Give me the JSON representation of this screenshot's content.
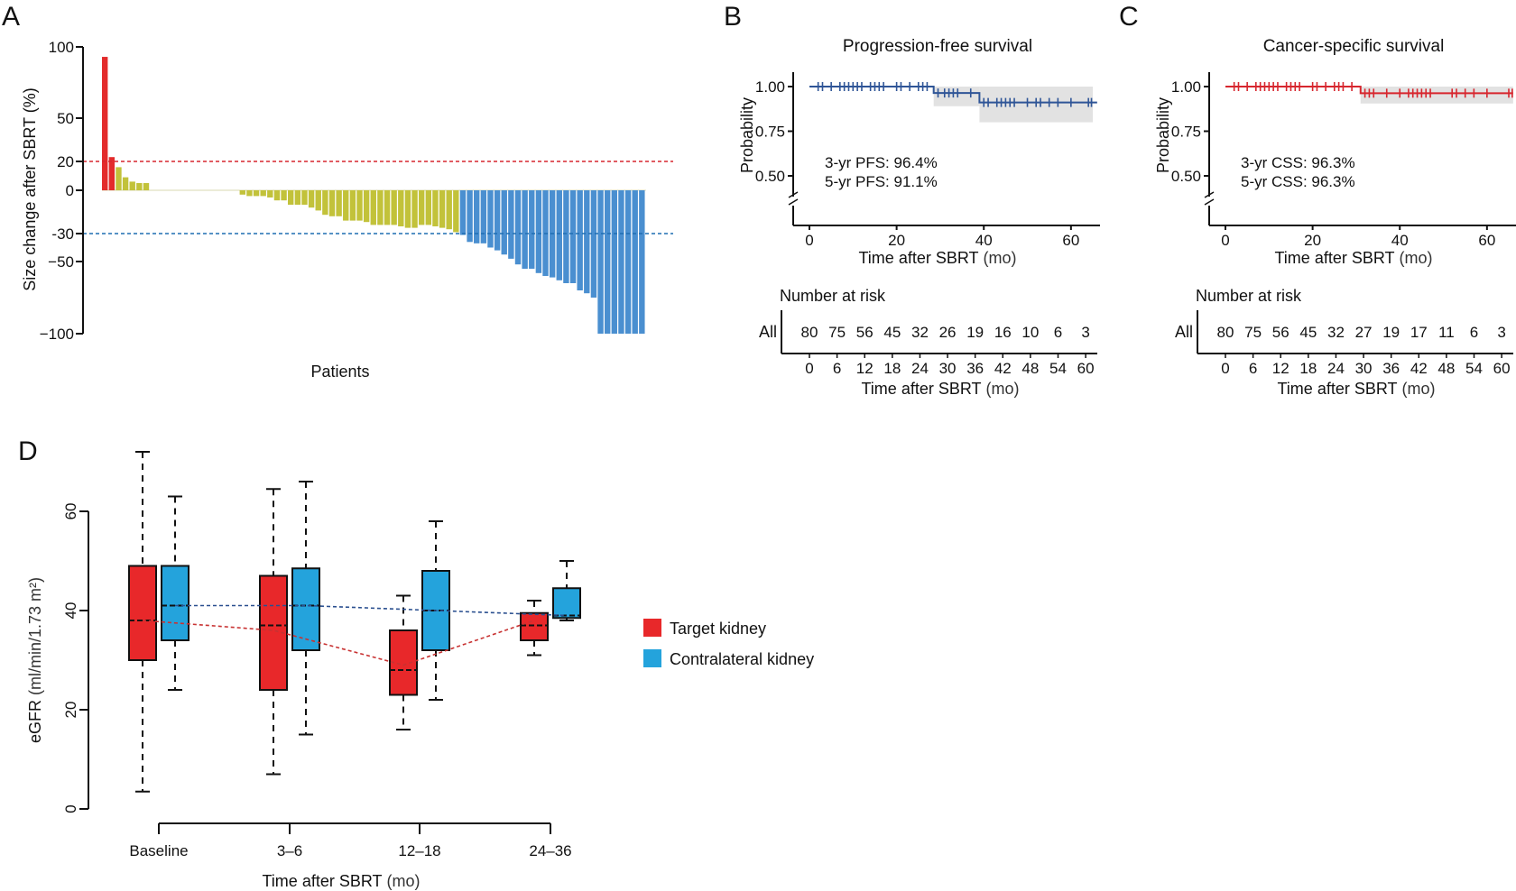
{
  "figure": {
    "panels": [
      "A",
      "B",
      "C",
      "D"
    ]
  },
  "chart_data": [
    {
      "panel": "A",
      "type": "bar",
      "title": "",
      "xlabel": "Patients",
      "ylabel": "Size change after SBRT (%)",
      "yticks": [
        "100",
        "50",
        "20",
        "0",
        "-30",
        "−50",
        "−100"
      ],
      "ylim": [
        -100,
        100
      ],
      "reference_lines": [
        {
          "value": 20,
          "color": "#d7262e",
          "style": "dashed"
        },
        {
          "value": -30,
          "color": "#1f6fb2",
          "style": "dashed"
        }
      ],
      "colors": {
        "progression": "#e32b2b",
        "stable": "#c2c23a",
        "response": "#4a8fd0"
      },
      "values": [
        93,
        23,
        16,
        9,
        6,
        5,
        5,
        0,
        0,
        0,
        0,
        0,
        0,
        0,
        0,
        0,
        0,
        0,
        0,
        0,
        -3,
        -4,
        -4,
        -4,
        -5,
        -7,
        -7,
        -10,
        -10,
        -10,
        -12,
        -14,
        -17,
        -18,
        -18,
        -21,
        -21,
        -21,
        -22,
        -24,
        -24,
        -24,
        -24,
        -25,
        -26,
        -26,
        -24,
        -24,
        -25,
        -26,
        -27,
        -29,
        -31,
        -36,
        -37,
        -37,
        -40,
        -42,
        -45,
        -48,
        -52,
        -55,
        -55,
        -58,
        -60,
        -61,
        -63,
        -65,
        -65,
        -70,
        -72,
        -75,
        -100,
        -100,
        -100,
        -100,
        -100,
        -100,
        -100
      ],
      "categories": [
        "progression",
        "progression",
        "stable",
        "stable",
        "stable",
        "stable",
        "stable",
        "stable",
        "stable",
        "stable",
        "stable",
        "stable",
        "stable",
        "stable",
        "stable",
        "stable",
        "stable",
        "stable",
        "stable",
        "stable",
        "stable",
        "stable",
        "stable",
        "stable",
        "stable",
        "stable",
        "stable",
        "stable",
        "stable",
        "stable",
        "stable",
        "stable",
        "stable",
        "stable",
        "stable",
        "stable",
        "stable",
        "stable",
        "stable",
        "stable",
        "stable",
        "stable",
        "stable",
        "stable",
        "stable",
        "stable",
        "stable",
        "stable",
        "stable",
        "stable",
        "stable",
        "stable",
        "response",
        "response",
        "response",
        "response",
        "response",
        "response",
        "response",
        "response",
        "response",
        "response",
        "response",
        "response",
        "response",
        "response",
        "response",
        "response",
        "response",
        "response",
        "response",
        "response",
        "response",
        "response",
        "response",
        "response",
        "response",
        "response",
        "response"
      ]
    },
    {
      "panel": "B",
      "type": "line",
      "title": "Progression-free survival",
      "xlabel": "Time after SBRT",
      "xlabel_unit": "(mo)",
      "ylabel": "Probability",
      "xticks": [
        "0",
        "20",
        "40",
        "60"
      ],
      "yticks": [
        "1.00",
        "0.75",
        "0.50"
      ],
      "xlim": [
        0,
        65
      ],
      "ylim": [
        0.5,
        1.0
      ],
      "color": "#2f5597",
      "ci_color": "#e2e2e2",
      "steps": [
        {
          "t": 0,
          "s": 1.0
        },
        {
          "t": 28.5,
          "s": 0.964
        },
        {
          "t": 39,
          "s": 0.911
        }
      ],
      "ci": [
        {
          "t0": 28.5,
          "t1": 39,
          "lo": 0.89,
          "hi": 1.0
        },
        {
          "t0": 39,
          "t1": 65,
          "lo": 0.8,
          "hi": 1.0
        }
      ],
      "censors": [
        2,
        3,
        5,
        7,
        8,
        9,
        10,
        11,
        12,
        14,
        15,
        16,
        17,
        20,
        21,
        23,
        25,
        26,
        27,
        29.5,
        31,
        32,
        33,
        34,
        37,
        40,
        41,
        43,
        44,
        45,
        46,
        47,
        50,
        52,
        53,
        55,
        57,
        60,
        64,
        64.7
      ],
      "annotations": [
        "3-yr PFS: 96.4%",
        "5-yr PFS: 91.1%"
      ],
      "risk_table": {
        "title": "Number at risk",
        "row_label": "All",
        "times": [
          "0",
          "6",
          "12",
          "18",
          "24",
          "30",
          "36",
          "42",
          "48",
          "54",
          "60"
        ],
        "counts": [
          "80",
          "75",
          "56",
          "45",
          "32",
          "26",
          "19",
          "16",
          "10",
          "6",
          "3"
        ],
        "xlabel": "Time after SBRT",
        "xlabel_unit": "(mo)"
      }
    },
    {
      "panel": "C",
      "type": "line",
      "title": "Cancer-specific survival",
      "xlabel": "Time after SBRT",
      "xlabel_unit": "(mo)",
      "ylabel": "Probability",
      "xticks": [
        "0",
        "20",
        "40",
        "60"
      ],
      "yticks": [
        "1.00",
        "0.75",
        "0.50"
      ],
      "xlim": [
        0,
        65
      ],
      "ylim": [
        0.5,
        1.0
      ],
      "color": "#d7262e",
      "ci_color": "#e2e2e2",
      "steps": [
        {
          "t": 0,
          "s": 1.0
        },
        {
          "t": 31,
          "s": 0.963
        }
      ],
      "ci": [
        {
          "t0": 31,
          "t1": 66,
          "lo": 0.905,
          "hi": 1.0
        }
      ],
      "censors": [
        2,
        3,
        5,
        7,
        8,
        9,
        10,
        11,
        12,
        14,
        15,
        16,
        17,
        20,
        21,
        23,
        25,
        26,
        27,
        29,
        32,
        33,
        34,
        37,
        40,
        42,
        43,
        44,
        45,
        46,
        47,
        52,
        53,
        55,
        57,
        60,
        65,
        65.8
      ],
      "annotations": [
        "3-yr CSS: 96.3%",
        "5-yr CSS: 96.3%"
      ],
      "risk_table": {
        "title": "Number at risk",
        "row_label": "All",
        "times": [
          "0",
          "6",
          "12",
          "18",
          "24",
          "30",
          "36",
          "42",
          "48",
          "54",
          "60"
        ],
        "counts": [
          "80",
          "75",
          "56",
          "45",
          "32",
          "27",
          "19",
          "17",
          "11",
          "6",
          "3"
        ],
        "xlabel": "Time after SBRT",
        "xlabel_unit": "(mo)"
      }
    },
    {
      "panel": "D",
      "type": "box",
      "title": "",
      "xlabel": "Time after SBRT",
      "xlabel_unit": "(mo)",
      "ylabel": "eGFR",
      "ylabel_unit": "(ml/min/1.73 m²)",
      "categories": [
        "Baseline",
        "3–6",
        "12–18",
        "24–36"
      ],
      "yticks": [
        "0",
        "20",
        "40",
        "60"
      ],
      "ylim": [
        0,
        60
      ],
      "series": [
        {
          "name": "Target kidney",
          "color": "#e8282a",
          "line_color": "#c83232",
          "boxes": [
            {
              "min": 3.5,
              "q1": 30,
              "median": 38,
              "q3": 49,
              "max": 72
            },
            {
              "min": 7,
              "q1": 24,
              "median": 37,
              "q3": 47,
              "max": 64.5
            },
            {
              "min": 16,
              "q1": 23,
              "median": 28,
              "q3": 36,
              "max": 43
            },
            {
              "min": 31,
              "q1": 34,
              "median": 37,
              "q3": 39.5,
              "max": 42
            }
          ],
          "trend": [
            38,
            36,
            29,
            38
          ]
        },
        {
          "name": "Contralateral kidney",
          "color": "#24a3dc",
          "line_color": "#2a4f8f",
          "boxes": [
            {
              "min": 24,
              "q1": 34,
              "median": 41,
              "q3": 49,
              "max": 63
            },
            {
              "min": 15,
              "q1": 32,
              "median": 41,
              "q3": 48.5,
              "max": 66
            },
            {
              "min": 22,
              "q1": 32,
              "median": 40,
              "q3": 48,
              "max": 58
            },
            {
              "min": 38,
              "q1": 38.5,
              "median": 39,
              "q3": 44.5,
              "max": 50
            }
          ],
          "trend": [
            41,
            41,
            40,
            39
          ]
        }
      ],
      "legend": [
        "Target kidney",
        "Contralateral kidney"
      ],
      "legend_position": "right"
    }
  ]
}
